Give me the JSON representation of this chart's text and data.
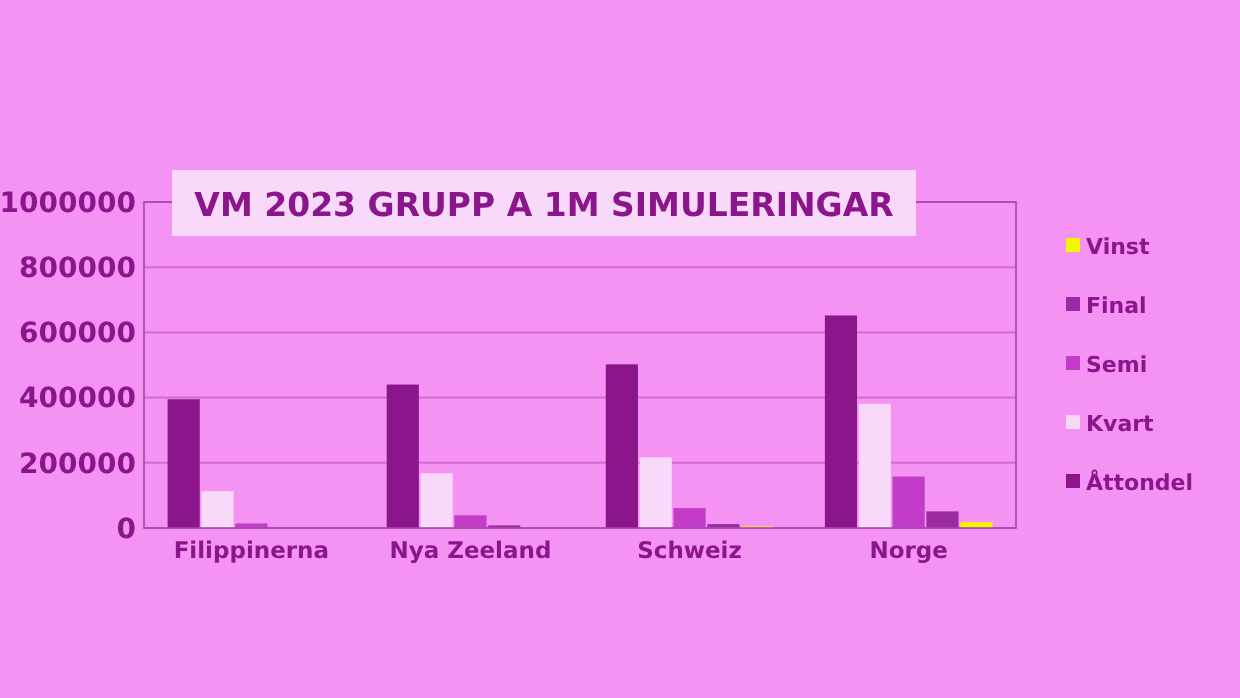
{
  "chart_data": {
    "type": "bar",
    "title": "VM 2023 GRUPP A 1M SIMULERINGAR",
    "categories": [
      "Filippinerna",
      "Nya Zeeland",
      "Schweiz",
      "Norge"
    ],
    "series": [
      {
        "name": "Åttondel",
        "color": "#8b168b",
        "values": [
          395000,
          440000,
          502000,
          652000
        ]
      },
      {
        "name": "Kvart",
        "color": "#f9d9f9",
        "values": [
          113000,
          168000,
          217000,
          381000
        ]
      },
      {
        "name": "Semi",
        "color": "#c23cc8",
        "values": [
          14000,
          39000,
          61000,
          158000
        ]
      },
      {
        "name": "Final",
        "color": "#9c2aa0",
        "values": [
          1000,
          8000,
          12000,
          51000
        ]
      },
      {
        "name": "Vinst",
        "color": "#f5f500",
        "values": [
          null,
          null,
          5000,
          18000
        ]
      }
    ],
    "ylim": [
      0,
      1000000
    ],
    "yticks": [
      0,
      200000,
      400000,
      600000,
      800000,
      1000000
    ],
    "grid": "y",
    "legend": "right"
  }
}
